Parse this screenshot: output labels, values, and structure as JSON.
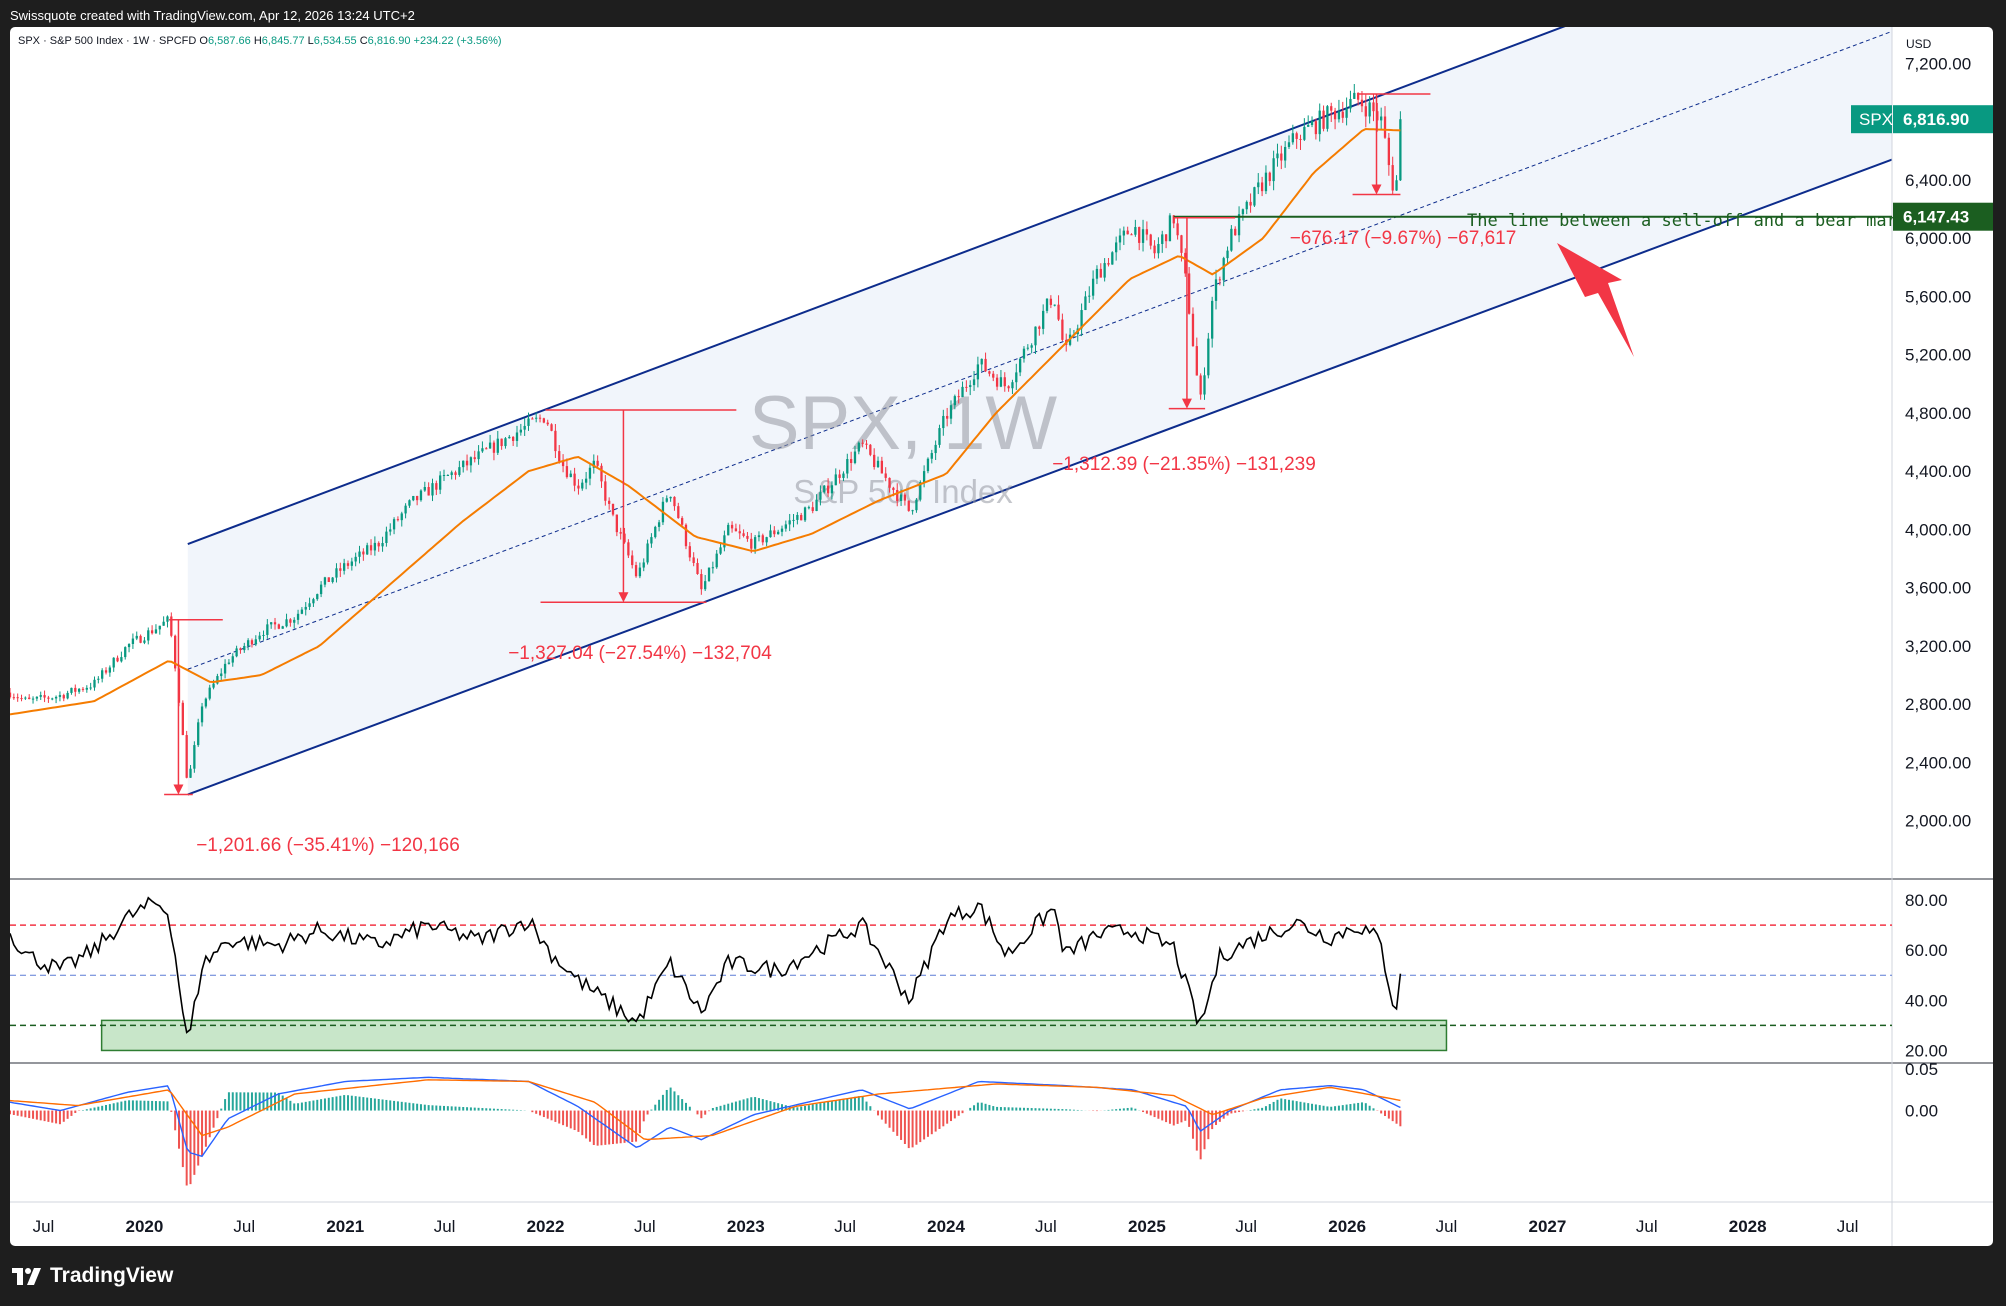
{
  "header": {
    "credit": "Swissquote created with TradingView.com, Apr 12, 2026 13:24 UTC+2"
  },
  "legend": {
    "title": "SPX · S&P 500 Index · 1W · SPCFD",
    "o_label": "O",
    "o": "6,587.66",
    "h_label": "H",
    "h": "6,845.77",
    "l_label": "L",
    "l": "6,534.55",
    "c_label": "C",
    "c": "6,816.90",
    "change": "+234.22 (+3.56%)"
  },
  "footer": {
    "brand": "TradingView"
  },
  "colors": {
    "up": "#089981",
    "down": "#f23645",
    "channel": "#0d2c8c",
    "ema": "#f57c00",
    "annotation_red": "#f23645",
    "annotation_green": "#1b5e20",
    "rsi_line": "#000000",
    "macd_line": "#2962ff",
    "signal_line": "#ff6d00"
  },
  "chart_data": {
    "type": "candlestick",
    "symbol": "SPX",
    "title": "SPX, 1W",
    "subtitle": "S&P 500 Index",
    "currency": "USD",
    "y_ticks": [
      2000,
      2400,
      2800,
      3200,
      3600,
      4000,
      4400,
      4800,
      5200,
      5600,
      6000,
      6400,
      7200
    ],
    "y_tick_labels": [
      "2,000.00",
      "2,400.00",
      "2,800.00",
      "3,200.00",
      "3,600.00",
      "4,000.00",
      "4,400.00",
      "4,800.00",
      "5,200.00",
      "5,600.00",
      "6,000.00",
      "6,400.00",
      "7,200.00"
    ],
    "ylim": [
      1600,
      7450
    ],
    "x_ticks": [
      {
        "date": "2019-07-01",
        "label": "Jul",
        "bold": false
      },
      {
        "date": "2020-01-01",
        "label": "2020",
        "bold": true
      },
      {
        "date": "2020-07-01",
        "label": "Jul",
        "bold": false
      },
      {
        "date": "2021-01-01",
        "label": "2021",
        "bold": true
      },
      {
        "date": "2021-07-01",
        "label": "Jul",
        "bold": false
      },
      {
        "date": "2022-01-01",
        "label": "2022",
        "bold": true
      },
      {
        "date": "2022-07-01",
        "label": "Jul",
        "bold": false
      },
      {
        "date": "2023-01-01",
        "label": "2023",
        "bold": true
      },
      {
        "date": "2023-07-01",
        "label": "Jul",
        "bold": false
      },
      {
        "date": "2024-01-01",
        "label": "2024",
        "bold": true
      },
      {
        "date": "2024-07-01",
        "label": "Jul",
        "bold": false
      },
      {
        "date": "2025-01-01",
        "label": "2025",
        "bold": true
      },
      {
        "date": "2025-07-01",
        "label": "Jul",
        "bold": false
      },
      {
        "date": "2026-01-01",
        "label": "2026",
        "bold": true
      },
      {
        "date": "2026-07-01",
        "label": "Jul",
        "bold": false
      },
      {
        "date": "2027-01-01",
        "label": "2027",
        "bold": true
      },
      {
        "date": "2027-07-01",
        "label": "Jul",
        "bold": false
      },
      {
        "date": "2028-01-01",
        "label": "2028",
        "bold": true
      },
      {
        "date": "2028-07-01",
        "label": "Jul",
        "bold": false
      }
    ],
    "xlim": [
      "2019-05-01",
      "2028-09-20"
    ],
    "price_series": {
      "name": "SPX",
      "points": [
        [
          "2019-05-01",
          2880
        ],
        [
          "2019-06-01",
          2820
        ],
        [
          "2019-08-01",
          2860
        ],
        [
          "2019-10-01",
          2940
        ],
        [
          "2019-12-01",
          3200
        ],
        [
          "2020-02-15",
          3380
        ],
        [
          "2020-03-01",
          2950
        ],
        [
          "2020-03-20",
          2240
        ],
        [
          "2020-04-15",
          2800
        ],
        [
          "2020-06-01",
          3100
        ],
        [
          "2020-08-01",
          3300
        ],
        [
          "2020-10-01",
          3400
        ],
        [
          "2020-11-15",
          3600
        ],
        [
          "2021-01-01",
          3750
        ],
        [
          "2021-03-01",
          3900
        ],
        [
          "2021-05-01",
          4180
        ],
        [
          "2021-07-01",
          4350
        ],
        [
          "2021-09-01",
          4500
        ],
        [
          "2021-11-01",
          4650
        ],
        [
          "2022-01-01",
          4780
        ],
        [
          "2022-02-01",
          4450
        ],
        [
          "2022-03-01",
          4300
        ],
        [
          "2022-04-01",
          4450
        ],
        [
          "2022-05-01",
          4100
        ],
        [
          "2022-06-17",
          3670
        ],
        [
          "2022-08-15",
          4280
        ],
        [
          "2022-10-12",
          3580
        ],
        [
          "2022-12-01",
          4000
        ],
        [
          "2023-01-15",
          3900
        ],
        [
          "2023-03-01",
          4000
        ],
        [
          "2023-05-01",
          4150
        ],
        [
          "2023-07-31",
          4580
        ],
        [
          "2023-10-27",
          4120
        ],
        [
          "2023-12-31",
          4770
        ],
        [
          "2024-03-01",
          5140
        ],
        [
          "2024-04-20",
          4980
        ],
        [
          "2024-07-15",
          5620
        ],
        [
          "2024-08-05",
          5200
        ],
        [
          "2024-10-01",
          5750
        ],
        [
          "2024-12-06",
          6090
        ],
        [
          "2025-01-15",
          5900
        ],
        [
          "2025-02-19",
          6140
        ],
        [
          "2025-03-15",
          5650
        ],
        [
          "2025-04-08",
          4850
        ],
        [
          "2025-05-01",
          5600
        ],
        [
          "2025-06-01",
          6000
        ],
        [
          "2025-08-01",
          6390
        ],
        [
          "2025-10-01",
          6700
        ],
        [
          "2025-12-01",
          6850
        ],
        [
          "2026-01-20",
          6950
        ],
        [
          "2026-02-15",
          6880
        ],
        [
          "2026-03-05",
          6800
        ],
        [
          "2026-03-20",
          6450
        ],
        [
          "2026-03-30",
          6300
        ],
        [
          "2026-04-10",
          6816.9
        ]
      ]
    },
    "ema_series": {
      "points": [
        [
          "2019-05-01",
          2730
        ],
        [
          "2019-10-01",
          2820
        ],
        [
          "2020-02-15",
          3100
        ],
        [
          "2020-05-01",
          2950
        ],
        [
          "2020-08-01",
          3000
        ],
        [
          "2020-11-15",
          3200
        ],
        [
          "2021-04-01",
          3650
        ],
        [
          "2021-08-01",
          4050
        ],
        [
          "2021-12-01",
          4400
        ],
        [
          "2022-03-01",
          4500
        ],
        [
          "2022-06-01",
          4300
        ],
        [
          "2022-10-01",
          3950
        ],
        [
          "2023-01-15",
          3850
        ],
        [
          "2023-05-01",
          3970
        ],
        [
          "2023-09-01",
          4200
        ],
        [
          "2024-01-01",
          4380
        ],
        [
          "2024-04-01",
          4800
        ],
        [
          "2024-08-01",
          5260
        ],
        [
          "2024-12-01",
          5720
        ],
        [
          "2025-03-01",
          5880
        ],
        [
          "2025-05-01",
          5750
        ],
        [
          "2025-08-01",
          6000
        ],
        [
          "2025-11-01",
          6450
        ],
        [
          "2026-02-01",
          6750
        ],
        [
          "2026-04-10",
          6740
        ]
      ]
    },
    "channel": {
      "upper_start": [
        "2020-03-20",
        3900
      ],
      "upper_end": [
        "2026-07-01",
        7150
      ],
      "lower_start": [
        "2020-03-20",
        2180
      ],
      "lower_end": [
        "2026-07-01",
        5400
      ]
    },
    "last_price": {
      "label": "SPX",
      "value": "6,816.90",
      "level": 6816.9
    },
    "horizontal_level": {
      "value": "6,147.43",
      "level": 6147.43
    },
    "annotations": [
      {
        "text": "−1,201.66 (−35.41%) −120,166",
        "from": [
          "2020-02-15",
          3380
        ],
        "to": [
          "2020-03-20",
          2180
        ]
      },
      {
        "text": "−1,327.04 (−27.54%) −132,704",
        "from": [
          "2022-01-01",
          4820
        ],
        "to": [
          "2022-10-12",
          3500
        ]
      },
      {
        "text": "−1,312.39 (−21.35%) −131,239",
        "from": [
          "2025-02-19",
          6140
        ],
        "to": [
          "2025-04-08",
          4830
        ]
      },
      {
        "text": "−676.17 (−9.67%) −67,617",
        "from": [
          "2026-01-20",
          6990
        ],
        "to": [
          "2026-03-30",
          6300
        ]
      }
    ],
    "note": "The line between a sell-off and a bear market.",
    "rsi": {
      "ylim": [
        15,
        88
      ],
      "y_ticks": [
        20,
        40,
        60,
        80
      ],
      "y_tick_labels": [
        "20.00",
        "40.00",
        "60.00",
        "80.00"
      ],
      "levels": [
        70,
        50,
        30
      ],
      "highlight_band": {
        "from": "2019-10-15",
        "to": "2026-07-01",
        "low": 20,
        "high": 32
      },
      "points": [
        [
          "2019-05-01",
          67
        ],
        [
          "2019-06-01",
          58
        ],
        [
          "2019-08-01",
          52
        ],
        [
          "2019-10-01",
          60
        ],
        [
          "2019-12-01",
          73
        ],
        [
          "2020-01-20",
          79
        ],
        [
          "2020-02-15",
          75
        ],
        [
          "2020-03-20",
          22
        ],
        [
          "2020-04-15",
          54
        ],
        [
          "2020-06-01",
          64
        ],
        [
          "2020-09-01",
          62
        ],
        [
          "2020-11-15",
          68
        ],
        [
          "2021-03-01",
          62
        ],
        [
          "2021-06-01",
          70
        ],
        [
          "2021-09-01",
          64
        ],
        [
          "2021-12-01",
          72
        ],
        [
          "2022-01-10",
          59
        ],
        [
          "2022-03-01",
          48
        ],
        [
          "2022-06-17",
          31
        ],
        [
          "2022-08-15",
          55
        ],
        [
          "2022-10-12",
          35
        ],
        [
          "2022-12-01",
          55
        ],
        [
          "2023-03-01",
          52
        ],
        [
          "2023-07-31",
          70
        ],
        [
          "2023-10-27",
          40
        ],
        [
          "2023-12-31",
          72
        ],
        [
          "2024-03-01",
          78
        ],
        [
          "2024-04-20",
          58
        ],
        [
          "2024-07-15",
          77
        ],
        [
          "2024-08-05",
          58
        ],
        [
          "2024-10-01",
          66
        ],
        [
          "2024-12-06",
          68
        ],
        [
          "2025-02-19",
          61
        ],
        [
          "2025-04-08",
          29
        ],
        [
          "2025-05-15",
          58
        ],
        [
          "2025-08-01",
          66
        ],
        [
          "2025-10-01",
          71
        ],
        [
          "2025-12-01",
          65
        ],
        [
          "2026-01-20",
          70
        ],
        [
          "2026-03-01",
          64
        ],
        [
          "2026-03-30",
          35
        ],
        [
          "2026-04-10",
          55
        ]
      ]
    },
    "macd": {
      "ylim": [
        -0.11,
        0.056
      ],
      "y_ticks": [
        0.0,
        0.05
      ],
      "y_tick_labels": [
        "0.00",
        "0.05"
      ],
      "macd_points": [
        [
          "2019-05-01",
          0.01
        ],
        [
          "2019-08-01",
          0.0
        ],
        [
          "2019-12-01",
          0.022
        ],
        [
          "2020-02-15",
          0.03
        ],
        [
          "2020-03-20",
          -0.05
        ],
        [
          "2020-04-15",
          -0.055
        ],
        [
          "2020-06-01",
          -0.01
        ],
        [
          "2020-09-01",
          0.02
        ],
        [
          "2021-01-01",
          0.035
        ],
        [
          "2021-06-01",
          0.04
        ],
        [
          "2021-12-01",
          0.035
        ],
        [
          "2022-03-01",
          0.005
        ],
        [
          "2022-06-17",
          -0.045
        ],
        [
          "2022-08-15",
          -0.02
        ],
        [
          "2022-10-12",
          -0.035
        ],
        [
          "2023-01-15",
          -0.005
        ],
        [
          "2023-07-31",
          0.025
        ],
        [
          "2023-10-27",
          0.002
        ],
        [
          "2024-03-01",
          0.035
        ],
        [
          "2024-08-05",
          0.03
        ],
        [
          "2024-12-06",
          0.025
        ],
        [
          "2025-03-15",
          0.005
        ],
        [
          "2025-04-08",
          -0.025
        ],
        [
          "2025-06-01",
          0.0
        ],
        [
          "2025-09-01",
          0.025
        ],
        [
          "2025-12-01",
          0.03
        ],
        [
          "2026-02-01",
          0.025
        ],
        [
          "2026-04-10",
          0.003
        ]
      ],
      "signal_points": [
        [
          "2019-05-01",
          0.012
        ],
        [
          "2019-09-01",
          0.006
        ],
        [
          "2020-02-15",
          0.025
        ],
        [
          "2020-04-15",
          -0.03
        ],
        [
          "2020-06-01",
          -0.02
        ],
        [
          "2020-10-01",
          0.02
        ],
        [
          "2021-06-01",
          0.037
        ],
        [
          "2021-12-01",
          0.035
        ],
        [
          "2022-04-01",
          0.01
        ],
        [
          "2022-07-01",
          -0.035
        ],
        [
          "2022-11-01",
          -0.03
        ],
        [
          "2023-04-01",
          0.005
        ],
        [
          "2023-09-01",
          0.02
        ],
        [
          "2024-04-01",
          0.032
        ],
        [
          "2024-10-01",
          0.028
        ],
        [
          "2025-02-19",
          0.018
        ],
        [
          "2025-05-01",
          -0.005
        ],
        [
          "2025-08-01",
          0.015
        ],
        [
          "2025-12-01",
          0.028
        ],
        [
          "2026-04-10",
          0.012
        ]
      ]
    }
  }
}
